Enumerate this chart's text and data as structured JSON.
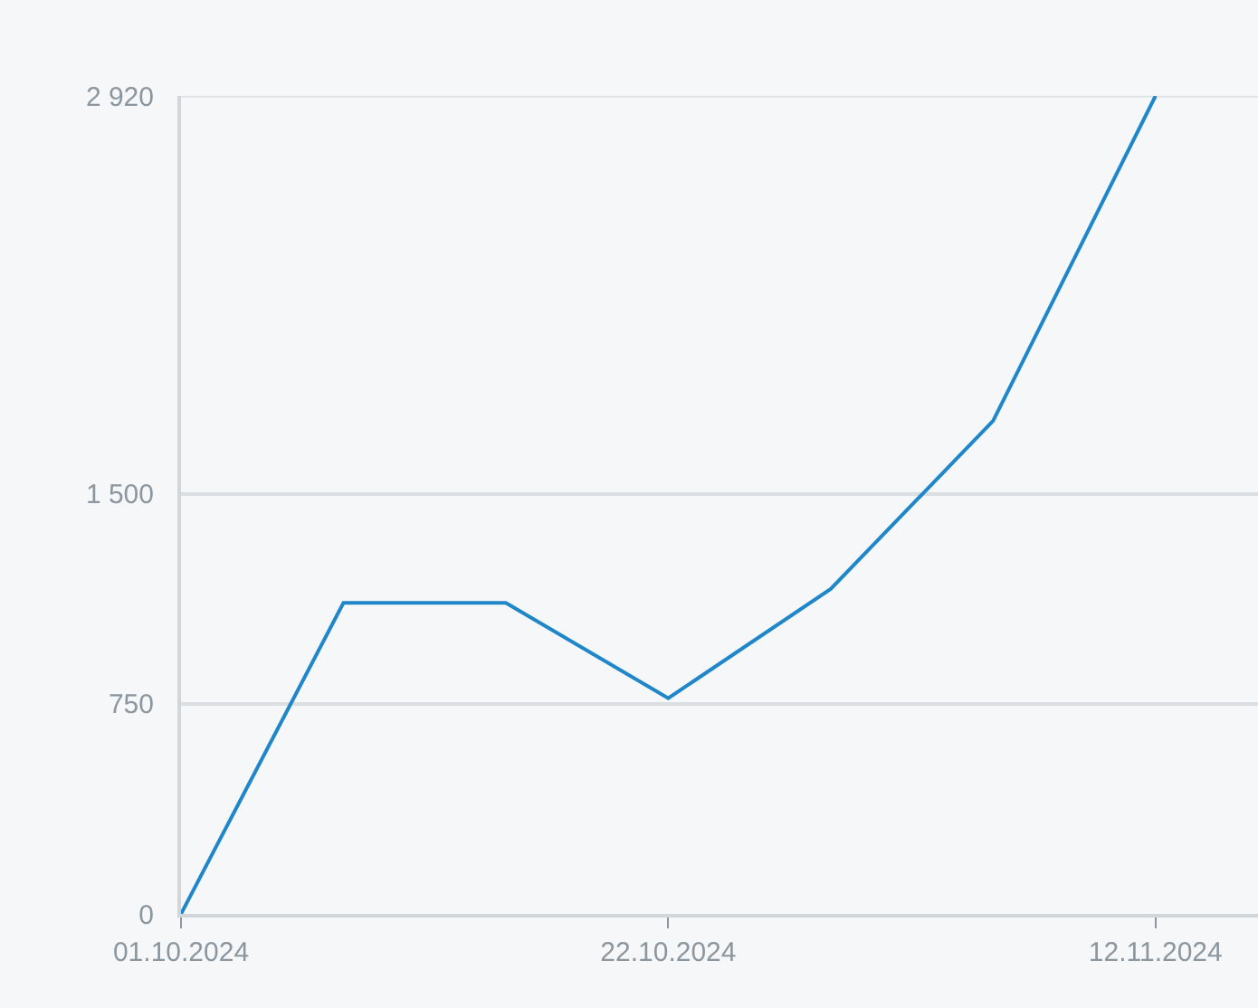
{
  "chart_data": {
    "type": "line",
    "x": [
      "2024-10-01",
      "2024-10-08",
      "2024-10-15",
      "2024-10-22",
      "2024-10-29",
      "2024-11-05",
      "2024-11-12"
    ],
    "series": [
      {
        "color": "#1f87c9",
        "values": [
          0,
          1110,
          1110,
          770,
          1160,
          1760,
          2920
        ]
      }
    ],
    "xlim": [
      "2024-10-01",
      "2024-11-16T10:00"
    ],
    "xticks": [
      {
        "value": "2024-10-01",
        "label": "01.10.2024"
      },
      {
        "value": "2024-10-22",
        "label": "22.10.2024"
      },
      {
        "value": "2024-11-12",
        "label": "12.11.2024"
      }
    ],
    "ylim": [
      0,
      2920
    ],
    "yticks": [
      0,
      750,
      {
        "value": 1500,
        "label": "1 500"
      },
      {
        "value": 2920,
        "label": "2 920"
      }
    ],
    "grid": "y",
    "marker": "none",
    "line_style": "solid"
  }
}
